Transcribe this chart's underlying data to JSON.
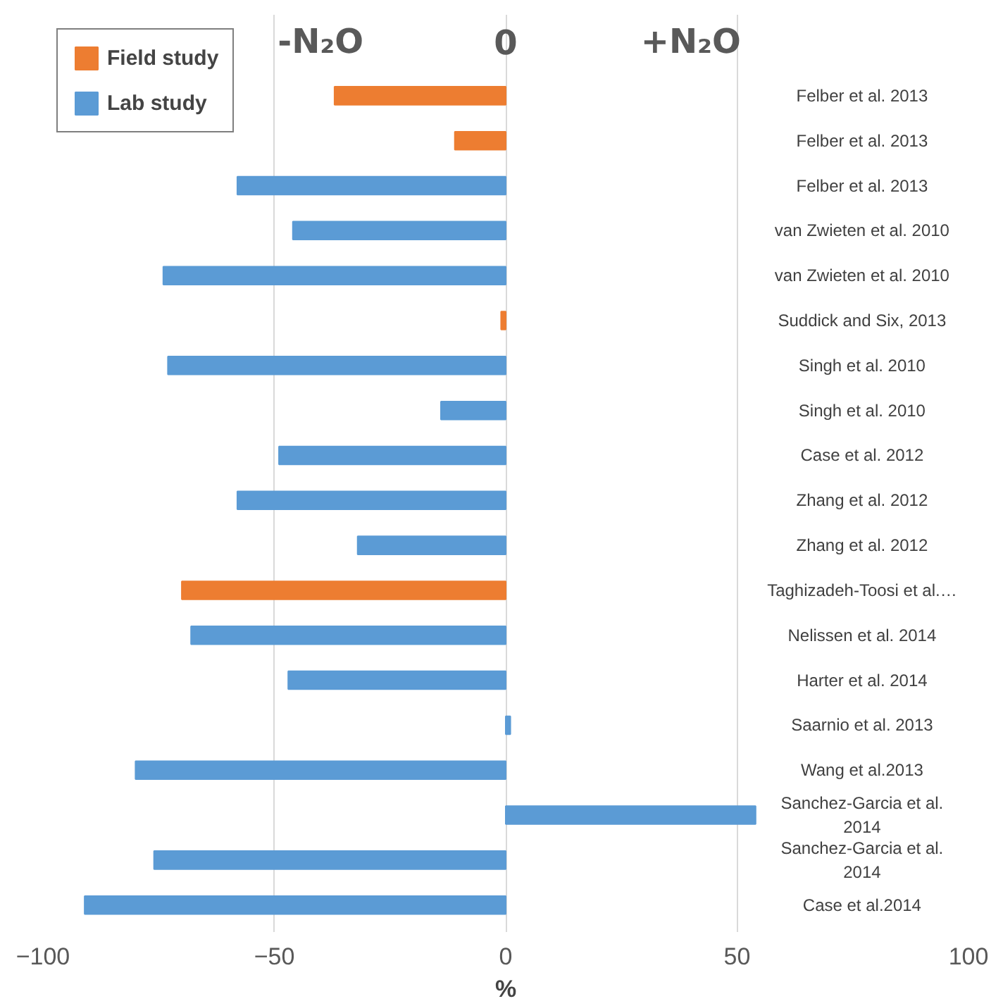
{
  "chart_data": {
    "type": "bar",
    "orientation": "horizontal",
    "xlabel": "%",
    "annotations": [
      "-N₂O",
      "0",
      "+N₂O"
    ],
    "categories": [
      "Felber et al. 2013",
      "Felber et al. 2013",
      "Felber et al. 2013",
      "van Zwieten et al. 2010",
      "van Zwieten et al. 2010",
      "Suddick and Six, 2013",
      "Singh et al. 2010",
      "Singh et al. 2010",
      "Case et al. 2012",
      "Zhang et al. 2012",
      "Zhang et al. 2012",
      "Taghizadeh-Toosi et al.…",
      "Nelissen et al. 2014",
      "Harter et al. 2014",
      "Saarnio et al. 2013",
      "Wang et al.2013",
      "Sanchez-Garcia et al. 2014",
      "Sanchez-Garcia et al. 2014",
      "Case et al.2014"
    ],
    "series": [
      {
        "name": "Field study",
        "color": "#ed7d31",
        "values": [
          -37,
          -11,
          null,
          null,
          null,
          -1,
          null,
          null,
          null,
          null,
          null,
          -70,
          null,
          null,
          null,
          null,
          null,
          null,
          null
        ]
      },
      {
        "name": "Lab study",
        "color": "#5b9bd5",
        "values": [
          null,
          null,
          -58,
          -46,
          -74,
          null,
          -73,
          -14,
          -49,
          -58,
          -32,
          null,
          -68,
          -47,
          1,
          -80,
          54,
          -76,
          -91
        ]
      }
    ],
    "xlim": [
      -100,
      100
    ],
    "xticks": [
      -100,
      -50,
      0,
      50,
      100
    ],
    "grid": "x",
    "legend": "top left"
  }
}
